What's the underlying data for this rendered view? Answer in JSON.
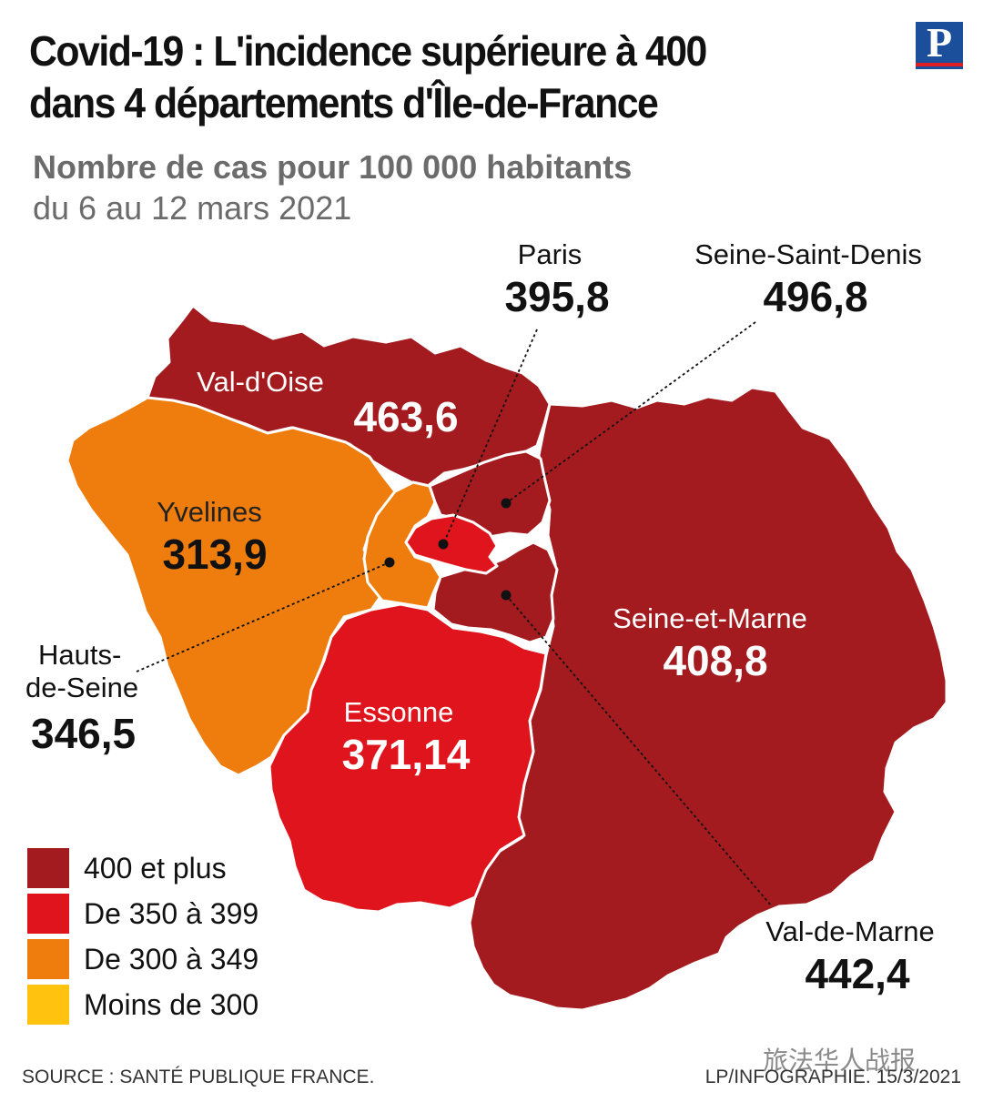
{
  "header": {
    "title_line1": "Covid-19 : L'incidence supérieure à 400",
    "title_line2": "dans 4 départements d'Île-de-France",
    "subtitle": "Nombre de cas pour 100 000 habitants",
    "period": "du 6 au 12 mars 2021",
    "logo": "P"
  },
  "departments": {
    "val_doise": {
      "name": "Val-d'Oise",
      "value": "463,6"
    },
    "yvelines": {
      "name": "Yvelines",
      "value": "313,9"
    },
    "hauts_de_seine": {
      "name_line1": "Hauts-",
      "name_line2": "de-Seine",
      "value": "346,5"
    },
    "essonne": {
      "name": "Essonne",
      "value": "371,14"
    },
    "seine_et_marne": {
      "name": "Seine-et-Marne",
      "value": "408,8"
    },
    "paris": {
      "name": "Paris",
      "value": "395,8"
    },
    "seine_saint_denis": {
      "name": "Seine-Saint-Denis",
      "value": "496,8"
    },
    "val_de_marne": {
      "name": "Val-de-Marne",
      "value": "442,4"
    }
  },
  "legend": [
    {
      "label": "400 et plus",
      "color": "#a31b1e"
    },
    {
      "label": "De 350 à 399",
      "color": "#e0141c"
    },
    {
      "label": "De 300 à 349",
      "color": "#ee7d0e"
    },
    {
      "label": "Moins de 300",
      "color": "#ffc20e"
    }
  ],
  "colors": {
    "dark_red": "#a31b1e",
    "red": "#e0141c",
    "orange": "#ee7d0e",
    "yellow": "#ffc20e"
  },
  "footer": {
    "source": "SOURCE : SANTÉ PUBLIQUE FRANCE.",
    "credit": "LP/INFOGRAPHIE. 15/3/2021",
    "watermark": "旅法华人战报"
  }
}
